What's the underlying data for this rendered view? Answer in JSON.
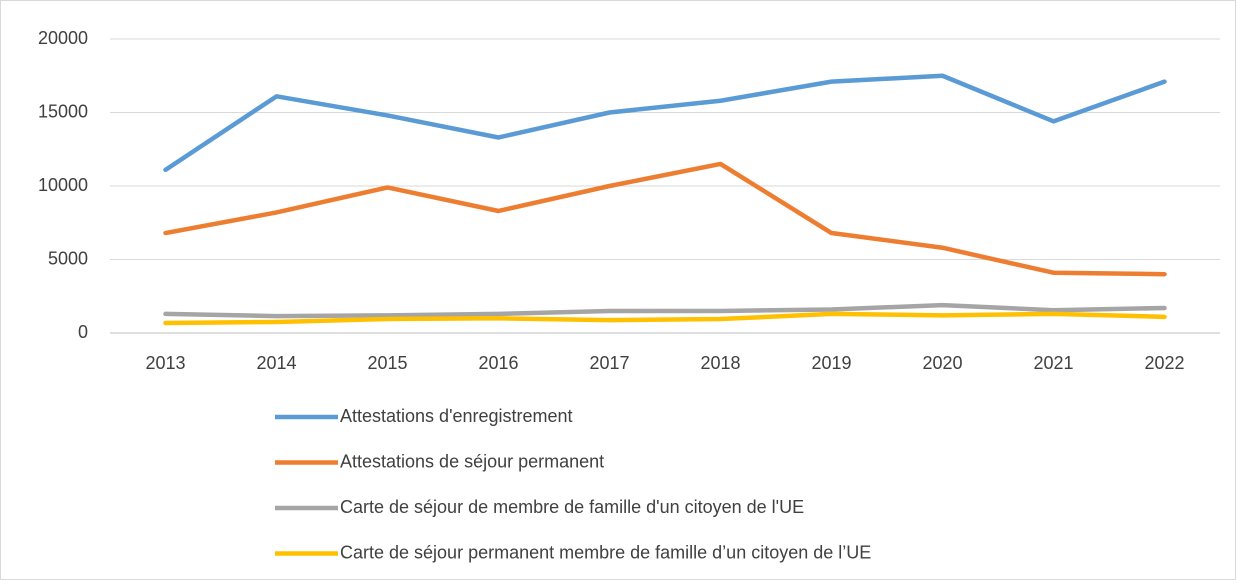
{
  "chart_data": {
    "type": "line",
    "categories": [
      "2013",
      "2014",
      "2015",
      "2016",
      "2017",
      "2018",
      "2019",
      "2020",
      "2021",
      "2022"
    ],
    "series": [
      {
        "name": "Attestations d'enregistrement",
        "color": "#5b9bd5",
        "values": [
          11100,
          16100,
          14800,
          13300,
          15000,
          15800,
          17100,
          17500,
          14400,
          17100
        ]
      },
      {
        "name": "Attestations de séjour permanent",
        "color": "#ed7d31",
        "values": [
          6800,
          8200,
          9900,
          8300,
          10000,
          11500,
          6800,
          5800,
          4100,
          4000
        ]
      },
      {
        "name": "Carte de séjour de membre de famille d'un citoyen de l'UE",
        "color": "#a5a5a5",
        "values": [
          1300,
          1150,
          1200,
          1300,
          1500,
          1500,
          1600,
          1900,
          1550,
          1700
        ]
      },
      {
        "name": "Carte de séjour permanent membre de famille d’un citoyen de l’UE",
        "color": "#ffc000",
        "values": [
          680,
          750,
          950,
          1000,
          880,
          950,
          1300,
          1200,
          1300,
          1100
        ]
      }
    ],
    "ylim": [
      0,
      20000
    ],
    "yticks": [
      0,
      5000,
      10000,
      15000,
      20000
    ],
    "grid": true,
    "legend": "bottom"
  }
}
